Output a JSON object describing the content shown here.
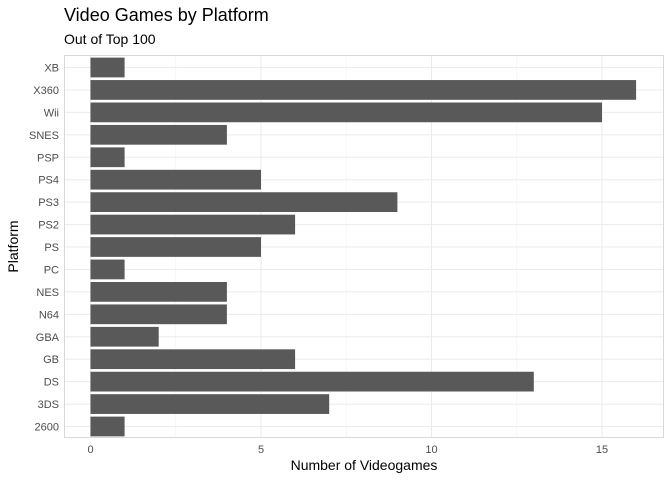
{
  "chart_data": {
    "type": "bar",
    "orientation": "horizontal",
    "title": "Video Games by Platform",
    "subtitle": "Out of Top 100",
    "xlabel": "Number of Videogames",
    "ylabel": "Platform",
    "categories": [
      "XB",
      "X360",
      "Wii",
      "SNES",
      "PSP",
      "PS4",
      "PS3",
      "PS2",
      "PS",
      "PC",
      "NES",
      "N64",
      "GBA",
      "GB",
      "DS",
      "3DS",
      "2600"
    ],
    "values": [
      1,
      16,
      15,
      4,
      1,
      5,
      9,
      6,
      5,
      1,
      4,
      4,
      2,
      6,
      13,
      7,
      1
    ],
    "xlim": [
      0,
      16
    ],
    "xticks": [
      0,
      5,
      10,
      15
    ],
    "grid": true,
    "legend": "none",
    "colors": {
      "bar": "#595959",
      "panel_border": "#d9d9d9",
      "grid_major": "#ebebeb",
      "grid_minor": "#f5f5f5",
      "tick_text": "#4d4d4d"
    }
  }
}
